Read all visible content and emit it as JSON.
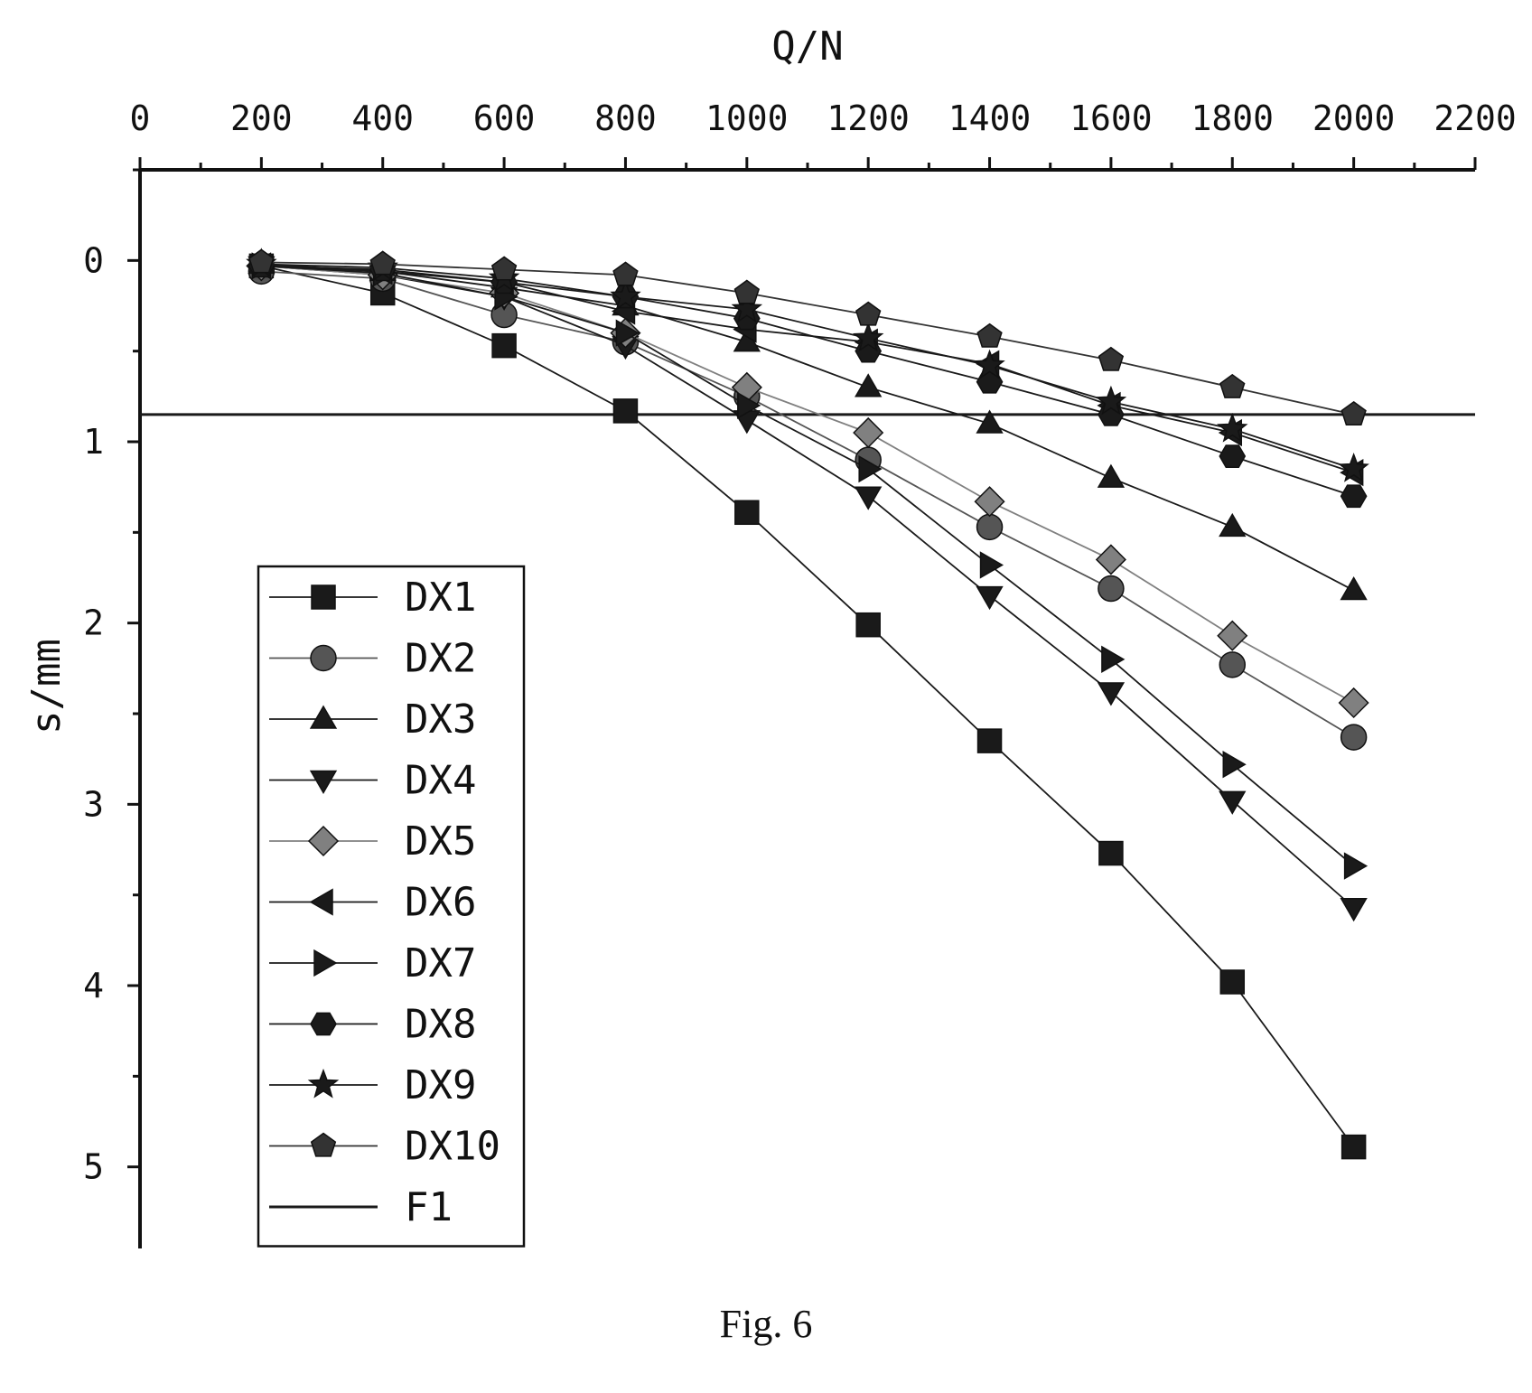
{
  "caption": "Fig. 6",
  "chart_data": {
    "type": "line",
    "xlabel": "Q/N",
    "ylabel": "s/mm",
    "xlim": [
      0,
      2200
    ],
    "ylim": [
      -0.5,
      5.45
    ],
    "y_inverted": true,
    "x_axis_position": "top",
    "x_ticks": [
      0,
      200,
      400,
      600,
      800,
      1000,
      1200,
      1400,
      1600,
      1800,
      2000,
      2200
    ],
    "y_ticks": [
      0,
      1,
      2,
      3,
      4,
      5
    ],
    "x": [
      200,
      400,
      600,
      800,
      1000,
      1200,
      1400,
      1600,
      1800,
      2000
    ],
    "grid": false,
    "legend_position": "bottom-left",
    "series": [
      {
        "name": "DX1",
        "marker": "square",
        "color": "#1a1a1a",
        "values": [
          0.03,
          0.18,
          0.47,
          0.83,
          1.39,
          2.01,
          2.65,
          3.27,
          3.98,
          4.89
        ]
      },
      {
        "name": "DX2",
        "marker": "circle",
        "color": "#555555",
        "values": [
          0.06,
          0.1,
          0.3,
          0.45,
          0.75,
          1.1,
          1.47,
          1.81,
          2.23,
          2.63
        ]
      },
      {
        "name": "DX3",
        "marker": "triangle-up",
        "color": "#1a1a1a",
        "values": [
          0.02,
          0.06,
          0.15,
          0.25,
          0.45,
          0.7,
          0.9,
          1.2,
          1.47,
          1.82
        ]
      },
      {
        "name": "DX4",
        "marker": "triangle-down",
        "color": "#1a1a1a",
        "values": [
          0.03,
          0.08,
          0.2,
          0.47,
          0.88,
          1.3,
          1.85,
          2.38,
          2.98,
          3.57
        ]
      },
      {
        "name": "DX5",
        "marker": "diamond",
        "color": "#808080",
        "values": [
          0.03,
          0.08,
          0.18,
          0.4,
          0.7,
          0.95,
          1.33,
          1.65,
          2.07,
          2.44
        ]
      },
      {
        "name": "DX6",
        "marker": "triangle-left",
        "color": "#1a1a1a",
        "values": [
          0.03,
          0.06,
          0.12,
          0.28,
          0.38,
          0.45,
          0.57,
          0.8,
          0.95,
          1.17
        ]
      },
      {
        "name": "DX7",
        "marker": "triangle-right",
        "color": "#1a1a1a",
        "values": [
          0.03,
          0.07,
          0.2,
          0.4,
          0.8,
          1.15,
          1.68,
          2.2,
          2.78,
          3.34
        ]
      },
      {
        "name": "DX8",
        "marker": "hexagon",
        "color": "#1a1a1a",
        "values": [
          0.03,
          0.05,
          0.12,
          0.2,
          0.32,
          0.5,
          0.67,
          0.85,
          1.08,
          1.3
        ]
      },
      {
        "name": "DX9",
        "marker": "star",
        "color": "#1a1a1a",
        "values": [
          0.02,
          0.04,
          0.1,
          0.2,
          0.27,
          0.43,
          0.58,
          0.78,
          0.93,
          1.15
        ]
      },
      {
        "name": "DX10",
        "marker": "pentagon",
        "color": "#333333",
        "values": [
          0.01,
          0.02,
          0.05,
          0.08,
          0.18,
          0.3,
          0.42,
          0.55,
          0.7,
          0.85
        ]
      }
    ],
    "reference_lines": [
      {
        "name": "F1",
        "orientation": "horizontal",
        "y": 0.85,
        "color": "#1a1a1a"
      }
    ]
  }
}
